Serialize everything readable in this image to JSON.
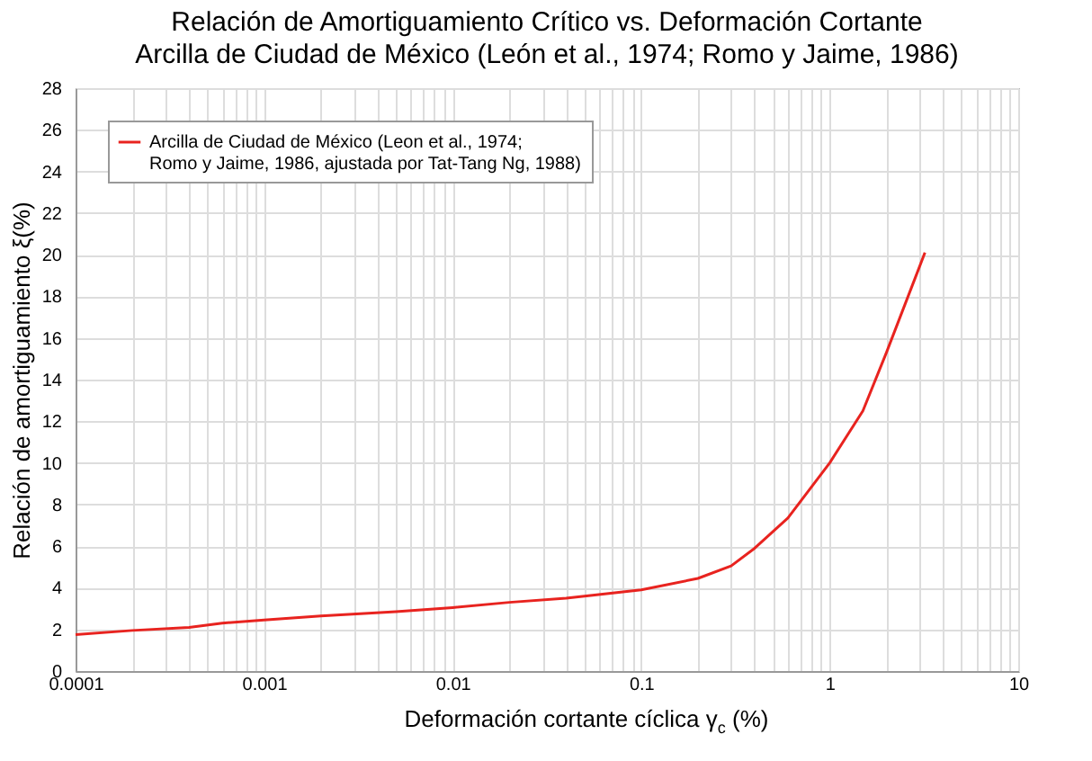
{
  "chart_data": {
    "type": "line",
    "title": "Relación de Amortiguamiento Crítico vs. Deformación Cortante",
    "subtitle": "Arcilla de Ciudad de México (León et al., 1974; Romo y Jaime, 1986)",
    "xlabel": "Deformación cortante cíclica γ$_{c}$ (%)",
    "ylabel": "Relación de amortiguamiento ξ(%)",
    "x": [
      0.0001,
      0.0002,
      0.0004,
      0.0006,
      0.001,
      0.002,
      0.005,
      0.01,
      0.02,
      0.04,
      0.1,
      0.2,
      0.3,
      0.4,
      0.6,
      1,
      1.5,
      2,
      3.2
    ],
    "series": [
      {
        "name": "Arcilla de Ciudad de México (Leon et al., 1974; Romo y Jaime, 1986, ajustada por Tat-Tang Ng, 1988)",
        "color": "#e8231f",
        "values": [
          1.75,
          1.95,
          2.1,
          2.3,
          2.45,
          2.65,
          2.85,
          3.05,
          3.3,
          3.5,
          3.9,
          4.45,
          5.05,
          5.9,
          7.35,
          10.0,
          12.5,
          15.3,
          20.1
        ]
      }
    ],
    "log": "x",
    "xlim": [
      0.0001,
      10
    ],
    "ylim": [
      0,
      28
    ],
    "xticks": [
      {
        "value": 0.0001,
        "label": "0.0001"
      },
      {
        "value": 0.0002,
        "label": null
      },
      {
        "value": 0.0003,
        "label": null
      },
      {
        "value": 0.0004,
        "label": null
      },
      {
        "value": 0.0005,
        "label": null
      },
      {
        "value": 0.0006,
        "label": null
      },
      {
        "value": 0.0007,
        "label": null
      },
      {
        "value": 0.0008,
        "label": null
      },
      {
        "value": 0.0009,
        "label": null
      },
      {
        "value": 0.001,
        "label": "0.001"
      },
      {
        "value": 0.002,
        "label": null
      },
      {
        "value": 0.003,
        "label": null
      },
      {
        "value": 0.004,
        "label": null
      },
      {
        "value": 0.005,
        "label": null
      },
      {
        "value": 0.006,
        "label": null
      },
      {
        "value": 0.007,
        "label": null
      },
      {
        "value": 0.008,
        "label": null
      },
      {
        "value": 0.009,
        "label": null
      },
      {
        "value": 0.01,
        "label": "0.01"
      },
      {
        "value": 0.02,
        "label": null
      },
      {
        "value": 0.03,
        "label": null
      },
      {
        "value": 0.04,
        "label": null
      },
      {
        "value": 0.05,
        "label": null
      },
      {
        "value": 0.06,
        "label": null
      },
      {
        "value": 0.07,
        "label": null
      },
      {
        "value": 0.08,
        "label": null
      },
      {
        "value": 0.09,
        "label": null
      },
      0.1,
      {
        "value": 0.2,
        "label": null
      },
      {
        "value": 0.3,
        "label": null
      },
      {
        "value": 0.4,
        "label": null
      },
      {
        "value": 0.5,
        "label": null
      },
      {
        "value": 0.6,
        "label": null
      },
      {
        "value": 0.7,
        "label": null
      },
      {
        "value": 0.8,
        "label": null
      },
      {
        "value": 0.9,
        "label": null
      },
      1,
      {
        "value": 2,
        "label": null
      },
      {
        "value": 3,
        "label": null
      },
      {
        "value": 4,
        "label": null
      },
      {
        "value": 5,
        "label": null
      },
      {
        "value": 6,
        "label": null
      },
      {
        "value": 7,
        "label": null
      },
      {
        "value": 8,
        "label": null
      },
      {
        "value": 9,
        "label": null
      },
      10
    ],
    "yticks": [
      0,
      2,
      4,
      6,
      8,
      10,
      12,
      14,
      16,
      18,
      20,
      22,
      24,
      26,
      28
    ],
    "grid": true,
    "legend": "top left",
    "line_style": "solid",
    "marker": "none"
  }
}
